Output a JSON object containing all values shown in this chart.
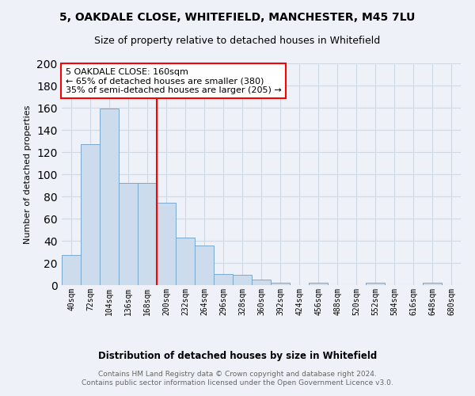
{
  "title1": "5, OAKDALE CLOSE, WHITEFIELD, MANCHESTER, M45 7LU",
  "title2": "Size of property relative to detached houses in Whitefield",
  "xlabel": "Distribution of detached houses by size in Whitefield",
  "ylabel": "Number of detached properties",
  "bar_labels": [
    "40sqm",
    "72sqm",
    "104sqm",
    "136sqm",
    "168sqm",
    "200sqm",
    "232sqm",
    "264sqm",
    "296sqm",
    "328sqm",
    "360sqm",
    "392sqm",
    "424sqm",
    "456sqm",
    "488sqm",
    "520sqm",
    "552sqm",
    "584sqm",
    "616sqm",
    "648sqm",
    "680sqm"
  ],
  "bar_values": [
    27,
    127,
    159,
    92,
    92,
    74,
    43,
    36,
    10,
    9,
    5,
    2,
    0,
    2,
    0,
    0,
    2,
    0,
    0,
    2,
    0
  ],
  "bar_color": "#ccdcec",
  "bar_edge_color": "#7aaace",
  "grid_color": "#d0d8e4",
  "background_color": "#eef2f8",
  "vline_x": 4.5,
  "vline_color": "red",
  "annotation_text": "5 OAKDALE CLOSE: 160sqm\n← 65% of detached houses are smaller (380)\n35% of semi-detached houses are larger (205) →",
  "annotation_box_facecolor": "white",
  "annotation_box_edgecolor": "red",
  "ylim": [
    0,
    200
  ],
  "yticks": [
    0,
    20,
    40,
    60,
    80,
    100,
    120,
    140,
    160,
    180,
    200
  ],
  "footer": "Contains HM Land Registry data © Crown copyright and database right 2024.\nContains public sector information licensed under the Open Government Licence v3.0."
}
